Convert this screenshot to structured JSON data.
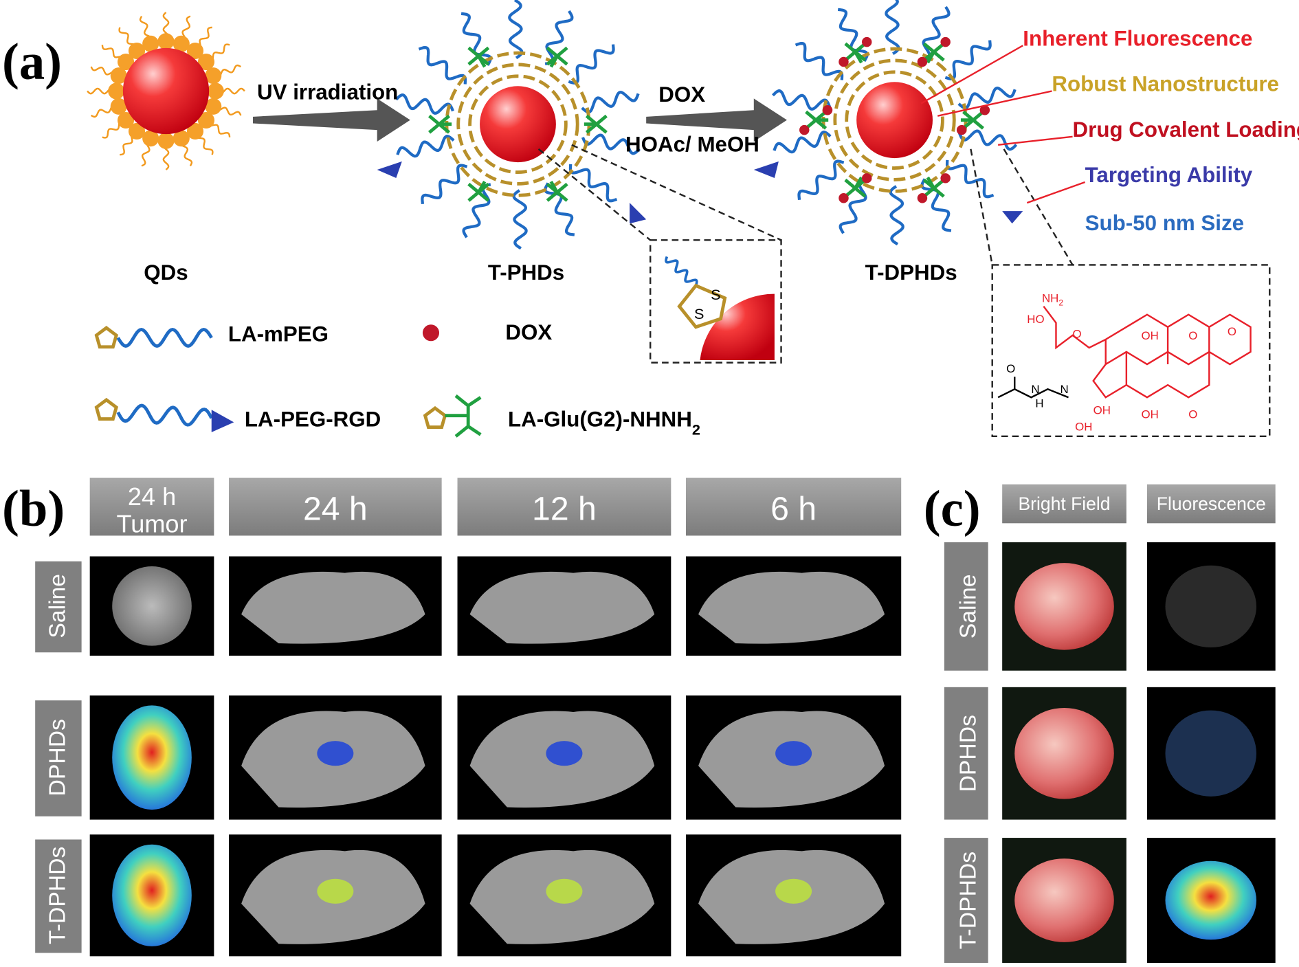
{
  "panel_a": {
    "label": "(a)",
    "arrow1": "UV irradiation",
    "arrow2_top": "DOX",
    "arrow2_bottom": "HOAc/ MeOH",
    "particles": [
      "QDs",
      "T-PHDs",
      "T-DPHDs"
    ],
    "features": [
      "Inherent Fluorescence",
      "Robust Nanostructure",
      "Drug Covalent Loading",
      "Targeting Ability",
      "Sub-50 nm Size"
    ],
    "legend": {
      "la_mpeg": "LA-mPEG",
      "dox": "DOX",
      "la_peg_rgd": "LA-PEG-RGD",
      "la_glu": {
        "text": "LA-Glu(G2)-NHNH",
        "sub": "2"
      }
    },
    "inset_atoms": [
      "S",
      "S"
    ],
    "chem_labels": [
      {
        "text": "NH",
        "sub": "2"
      },
      {
        "text": "HO"
      },
      {
        "text": "O"
      },
      {
        "text": "OH"
      },
      {
        "text": "O"
      },
      {
        "text": "O"
      },
      {
        "text": "OH"
      },
      {
        "text": "OH"
      },
      {
        "text": "O"
      },
      {
        "text": "OH"
      },
      {
        "text": "O"
      },
      {
        "text": "N"
      },
      {
        "text": "N"
      },
      {
        "text": "H"
      }
    ]
  },
  "panel_b": {
    "label": "(b)",
    "headers": [
      [
        "24 h",
        "Tumor"
      ],
      "24 h",
      "12 h",
      "6 h"
    ],
    "rows": [
      "Saline",
      "DPHDs",
      "T-DPHDs"
    ]
  },
  "panel_c": {
    "label": "(c)",
    "headers": [
      "Bright Field",
      "Fluorescence"
    ],
    "rows": [
      "Saline",
      "DPHDs",
      "T-DPHDs"
    ]
  }
}
